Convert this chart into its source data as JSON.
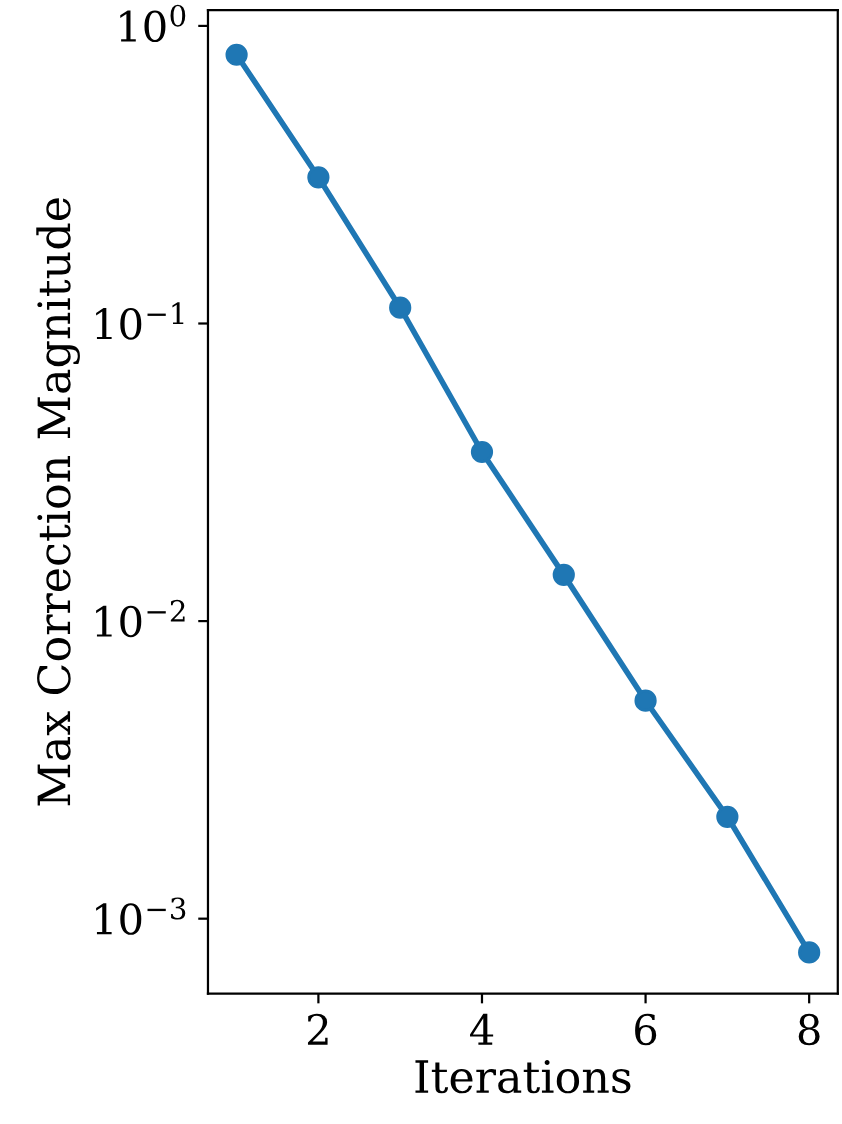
{
  "chart_data": {
    "type": "line",
    "xlabel": "Iterations",
    "ylabel": "Max Correction Magnitude",
    "x": [
      1,
      2,
      3,
      4,
      5,
      6,
      7,
      8
    ],
    "series": [
      {
        "color": "#1f77b4",
        "values": [
          0.8,
          0.31,
          0.113,
          0.037,
          0.0143,
          0.0054,
          0.0022,
          0.00077
        ]
      }
    ],
    "log": "y",
    "marker": "circle",
    "line_style": "solid",
    "grid": false,
    "legend": false,
    "xlim": [
      0.65,
      8.35
    ],
    "xticks": [
      2,
      4,
      6,
      8
    ],
    "ylim": [
      0.00056,
      1.13
    ],
    "yticks": [
      {
        "value": 0.001,
        "label": "10$^{−3}$"
      },
      {
        "value": 0.01,
        "label": "10$^{−2}$"
      },
      {
        "value": 0.1,
        "label": "10$^{−1}$"
      },
      {
        "value": 1,
        "label": "10$^{0}$"
      }
    ]
  }
}
